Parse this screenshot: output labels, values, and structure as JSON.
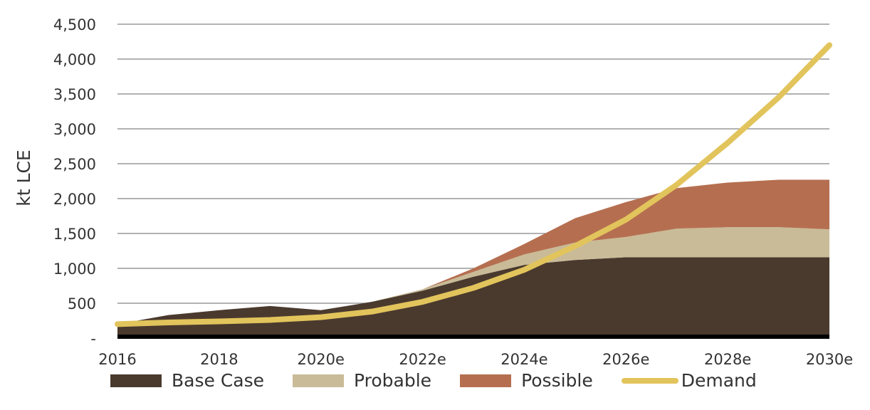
{
  "chart_data": {
    "type": "area",
    "title": "",
    "xlabel": "",
    "ylabel": "kt LCE",
    "ylim": [
      0,
      4500
    ],
    "yticks": [
      0,
      500,
      1000,
      1500,
      2000,
      2500,
      3000,
      3500,
      4000,
      4500
    ],
    "ytick_labels": [
      "-",
      "500",
      "1,000",
      "1,500",
      "2,000",
      "2,500",
      "3,000",
      "3,500",
      "4,000",
      "4,500"
    ],
    "x": [
      "2016",
      "2017",
      "2018",
      "2019",
      "2020e",
      "2021e",
      "2022e",
      "2023e",
      "2024e",
      "2025e",
      "2026e",
      "2027e",
      "2028e",
      "2029e",
      "2030e"
    ],
    "xtick_labels": [
      "2016",
      "2018",
      "2020e",
      "2022e",
      "2024e",
      "2026e",
      "2028e",
      "2030e"
    ],
    "grid": true,
    "legend_position": "bottom",
    "series": [
      {
        "name": "Base Case",
        "kind": "stacked-area",
        "color": "#4a3a2e",
        "values": [
          200,
          330,
          400,
          460,
          400,
          520,
          680,
          880,
          1050,
          1120,
          1160,
          1160,
          1160,
          1160,
          1160
        ]
      },
      {
        "name": "Probable",
        "kind": "stacked-area",
        "color": "#c9bb97",
        "values": [
          0,
          0,
          0,
          0,
          0,
          0,
          20,
          70,
          150,
          250,
          290,
          410,
          430,
          430,
          400
        ]
      },
      {
        "name": "Possible",
        "kind": "stacked-area",
        "color": "#b56f50",
        "values": [
          0,
          0,
          0,
          0,
          0,
          0,
          0,
          50,
          150,
          350,
          500,
          580,
          640,
          680,
          710
        ]
      },
      {
        "name": "Demand",
        "kind": "line",
        "color": "#e2c45c",
        "values": [
          200,
          225,
          240,
          260,
          300,
          380,
          520,
          720,
          980,
          1320,
          1700,
          2200,
          2800,
          3450,
          4200
        ]
      }
    ]
  }
}
